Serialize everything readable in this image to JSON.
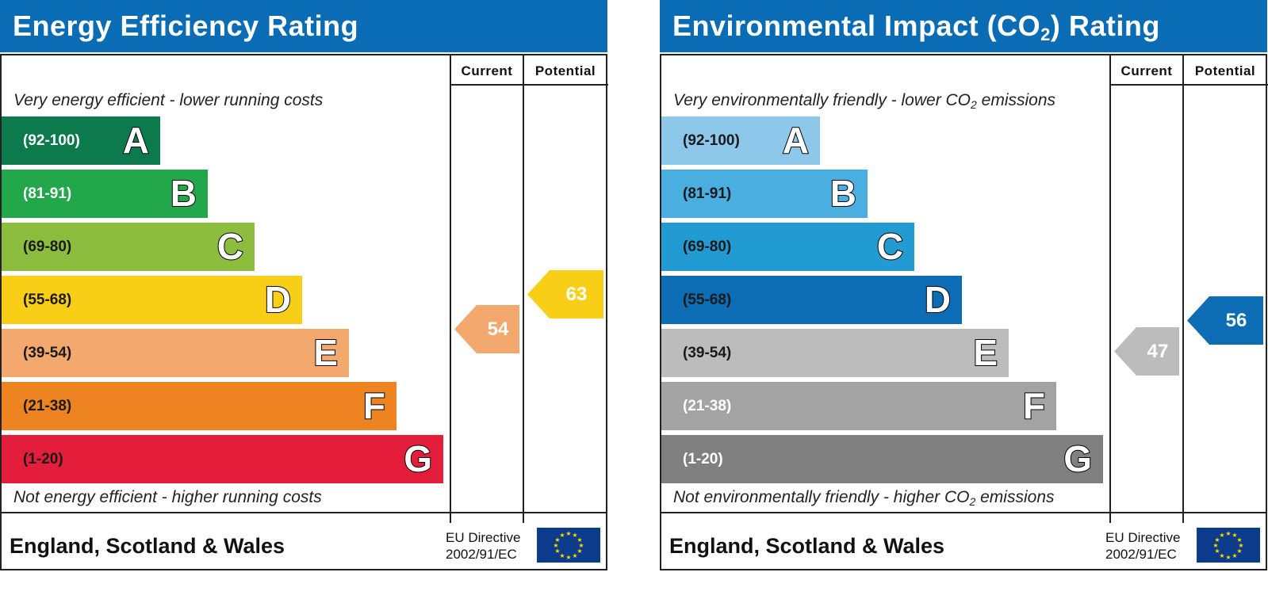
{
  "chart_data": [
    {
      "type": "bar",
      "title": "Energy Efficiency Rating",
      "columns": [
        "Current",
        "Potential"
      ],
      "caption_top": "Very energy efficient - lower running costs",
      "caption_bottom": "Not energy efficient - higher running costs",
      "bands": [
        {
          "range": "(92-100)",
          "letter": "A",
          "color": "#0c7a4d",
          "text_dark": false
        },
        {
          "range": "(81-91)",
          "letter": "B",
          "color": "#22a84b",
          "text_dark": false
        },
        {
          "range": "(69-80)",
          "letter": "C",
          "color": "#8cbd3f",
          "text_dark": true
        },
        {
          "range": "(55-68)",
          "letter": "D",
          "color": "#f8cf16",
          "text_dark": true
        },
        {
          "range": "(39-54)",
          "letter": "E",
          "color": "#f3a96d",
          "text_dark": true
        },
        {
          "range": "(21-38)",
          "letter": "F",
          "color": "#ee8421",
          "text_dark": true
        },
        {
          "range": "(1-20)",
          "letter": "G",
          "color": "#e41e3a",
          "text_dark": true
        }
      ],
      "current": {
        "value": 54,
        "band": "E",
        "color": "#f3a96d"
      },
      "potential": {
        "value": 63,
        "band": "D",
        "color": "#f8cf16"
      },
      "footer": "England, Scotland & Wales",
      "directive_line1": "EU Directive",
      "directive_line2": "2002/91/EC"
    },
    {
      "type": "bar",
      "title_main": "Environmental Impact (CO",
      "title_sub": "2",
      "title_end": ") Rating",
      "columns": [
        "Current",
        "Potential"
      ],
      "caption_top_main": "Very environmentally friendly - lower CO",
      "caption_top_sub": "2",
      "caption_top_end": " emissions",
      "caption_bottom_main": "Not environmentally friendly - higher CO",
      "caption_bottom_sub": "2",
      "caption_bottom_end": " emissions",
      "bands": [
        {
          "range": "(92-100)",
          "letter": "A",
          "color": "#8dc7ea",
          "text_dark": true
        },
        {
          "range": "(81-91)",
          "letter": "B",
          "color": "#4aaee1",
          "text_dark": true
        },
        {
          "range": "(69-80)",
          "letter": "C",
          "color": "#229bd2",
          "text_dark": true
        },
        {
          "range": "(55-68)",
          "letter": "D",
          "color": "#0c6cb4",
          "text_dark": true
        },
        {
          "range": "(39-54)",
          "letter": "E",
          "color": "#bdbcbc",
          "text_dark": true
        },
        {
          "range": "(21-38)",
          "letter": "F",
          "color": "#a3a3a3",
          "text_dark": false
        },
        {
          "range": "(1-20)",
          "letter": "G",
          "color": "#808080",
          "text_dark": false
        }
      ],
      "current": {
        "value": 47,
        "band": "E",
        "color": "#bdbcbc"
      },
      "potential": {
        "value": 56,
        "band": "D",
        "color": "#0c6cb4"
      },
      "footer": "England, Scotland & Wales",
      "directive_line1": "EU Directive",
      "directive_line2": "2002/91/EC"
    }
  ],
  "icons": {
    "eu_flag": "eu-flag-icon"
  }
}
